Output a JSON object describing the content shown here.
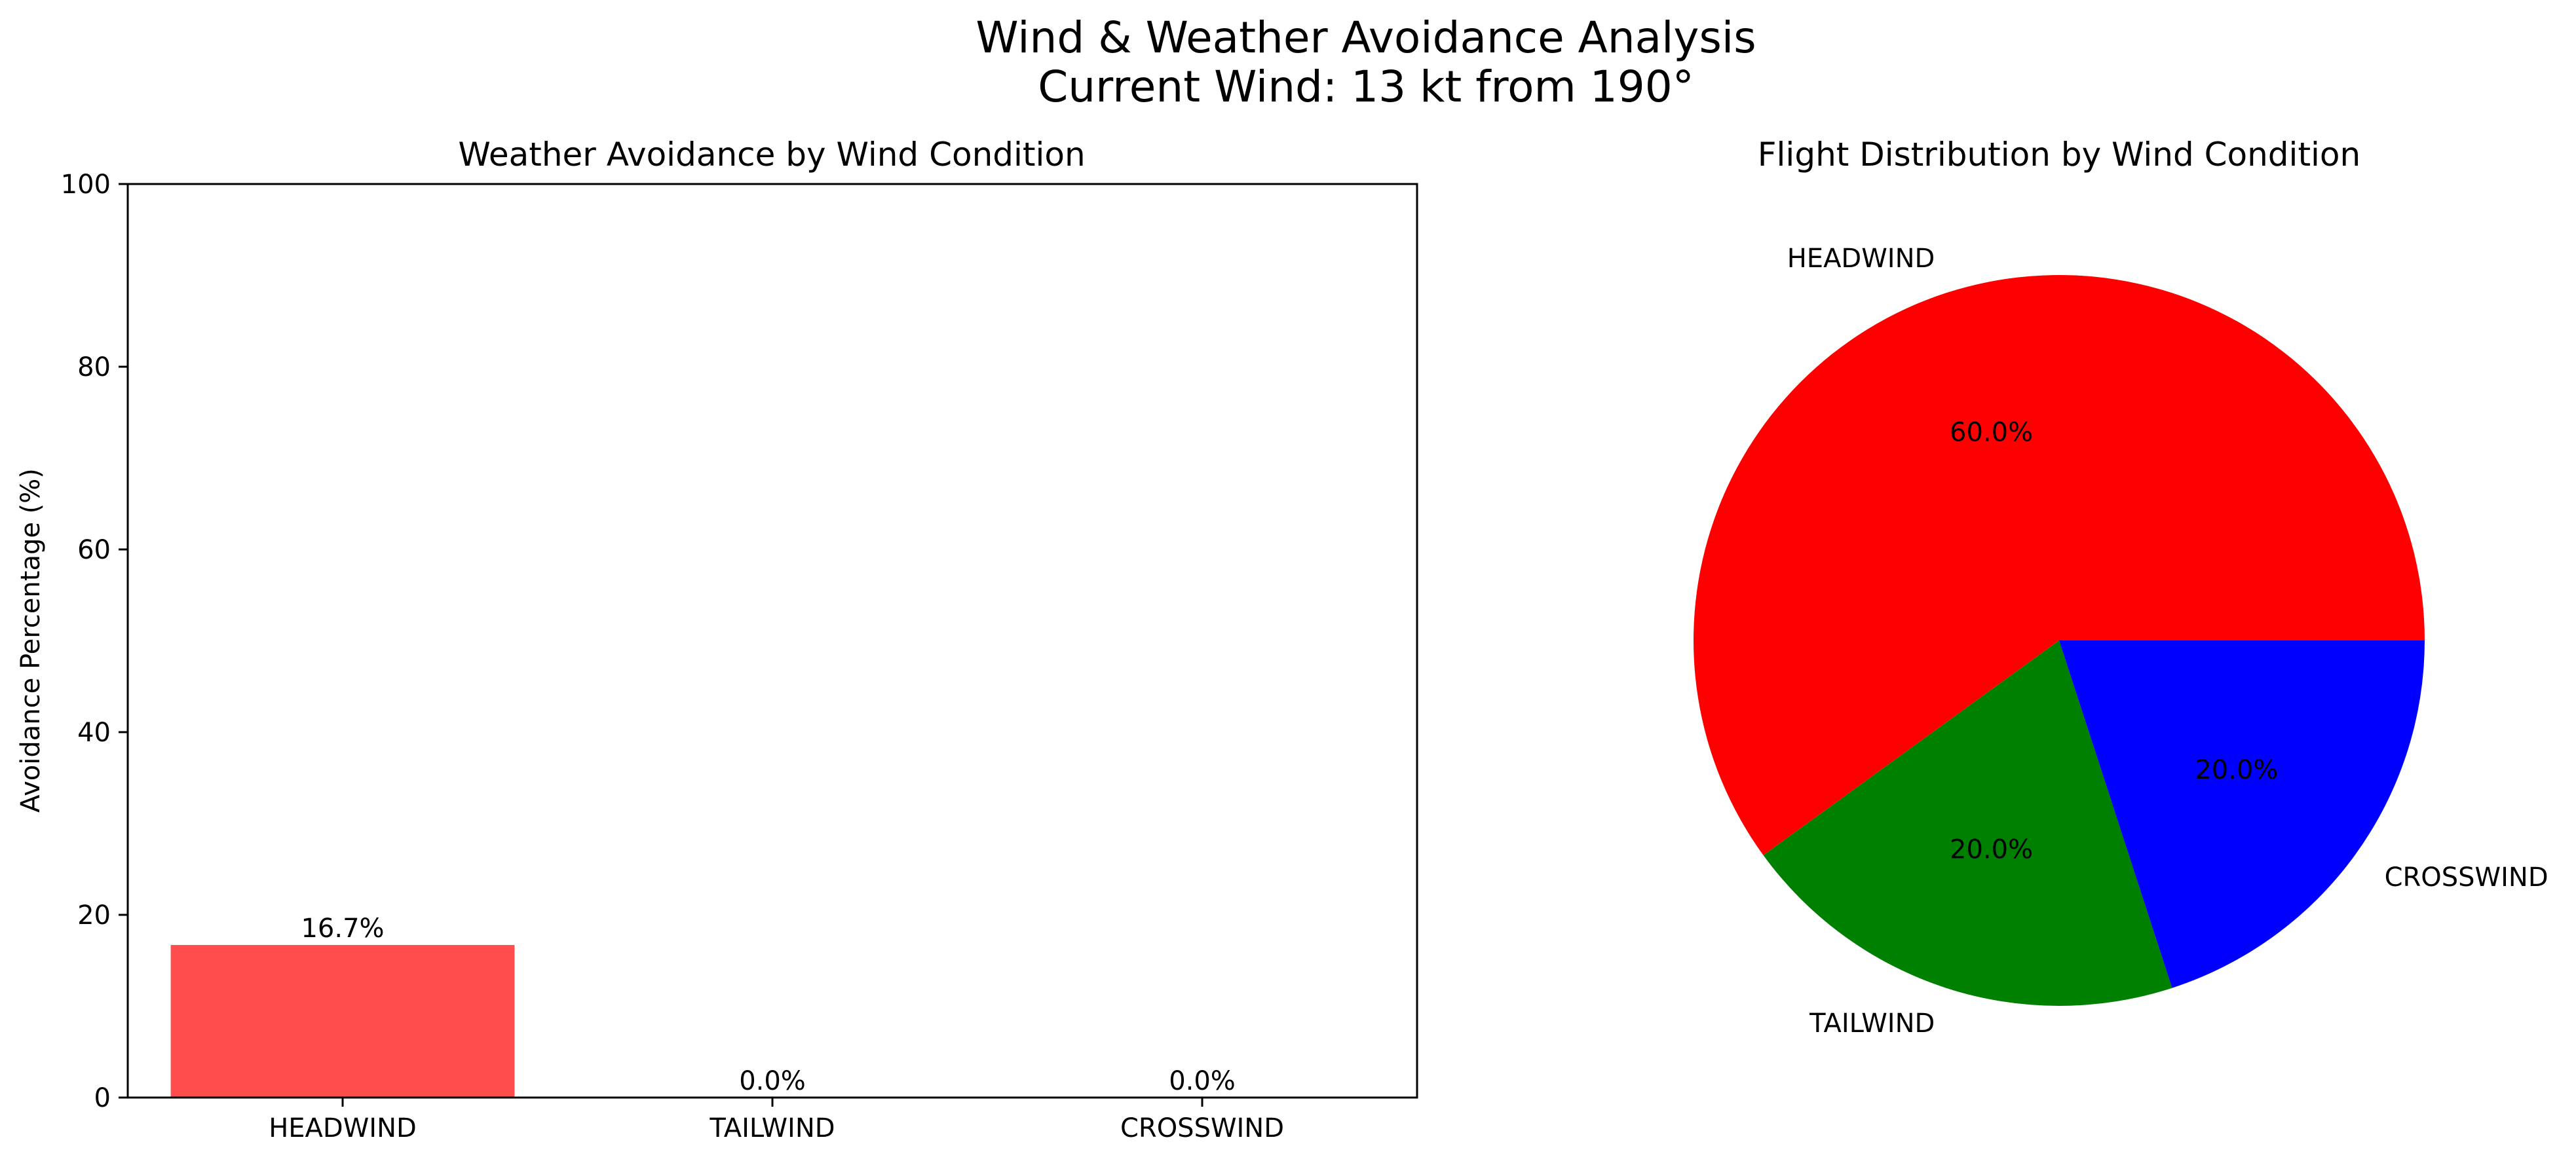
{
  "suptitle": {
    "line1": "Wind & Weather Avoidance Analysis",
    "line2": "Current Wind: 13 kt from 190°"
  },
  "chart_data": [
    {
      "type": "bar",
      "title": "Weather Avoidance by Wind Condition",
      "xlabel": "",
      "ylabel": "Avoidance Percentage (%)",
      "categories": [
        "HEADWIND",
        "TAILWIND",
        "CROSSWIND"
      ],
      "values": [
        16.7,
        0.0,
        0.0
      ],
      "value_labels": [
        "16.7%",
        "0.0%",
        "0.0%"
      ],
      "ylim": [
        0,
        100
      ],
      "yticks": [
        0,
        20,
        40,
        60,
        80,
        100
      ],
      "bar_color": "#ff4d4d",
      "grid": false,
      "legend": "none"
    },
    {
      "type": "pie",
      "title": "Flight Distribution by Wind Condition",
      "labels": [
        "HEADWIND",
        "TAILWIND",
        "CROSSWIND"
      ],
      "values": [
        60.0,
        20.0,
        20.0
      ],
      "pct_labels": [
        "60.0%",
        "20.0%",
        "20.0%"
      ],
      "colors": [
        "#ff0000",
        "#008000",
        "#0000ff"
      ],
      "legend": "none"
    }
  ]
}
